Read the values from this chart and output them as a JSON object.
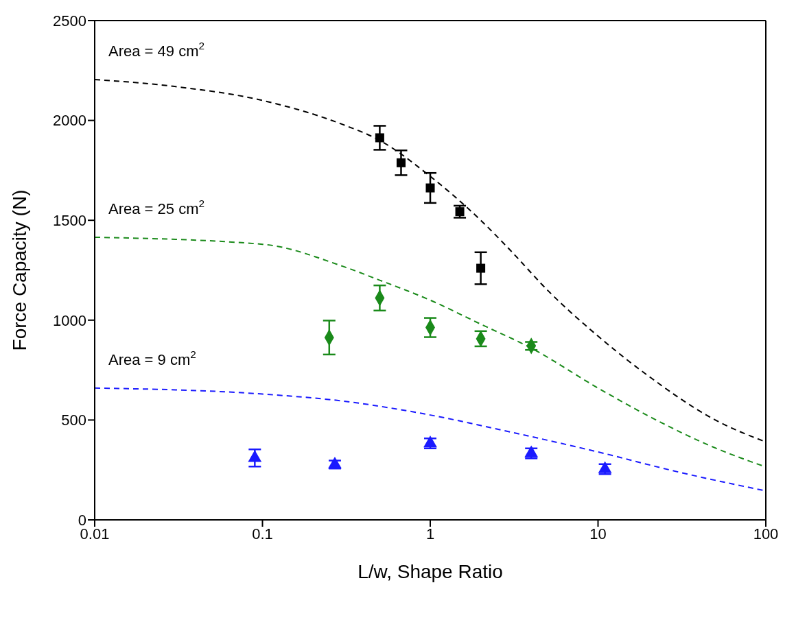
{
  "chart_data": {
    "type": "scatter",
    "xlabel": "L/w, Shape Ratio",
    "ylabel": "Force Capacity (N)",
    "log": "x",
    "xlim": [
      0.01,
      100
    ],
    "xticks": [
      0.01,
      0.1,
      1,
      10,
      100
    ],
    "ylim": [
      0,
      2500
    ],
    "yticks": [
      0,
      500,
      1000,
      1500,
      2000,
      2500
    ],
    "grid": false,
    "series": [
      {
        "type": "line",
        "color": "#000000",
        "line_style": "dashed",
        "marker": "none",
        "x": [
          0.01,
          0.03,
          0.1,
          0.3,
          0.5,
          1,
          2,
          3,
          5,
          10,
          20,
          50,
          100
        ],
        "values": [
          2205,
          2170,
          2100,
          1980,
          1900,
          1720,
          1500,
          1350,
          1150,
          920,
          720,
          500,
          390
        ]
      },
      {
        "type": "line",
        "color": "#1a8a1a",
        "line_style": "dashed",
        "marker": "none",
        "x": [
          0.01,
          0.1,
          0.3,
          0.5,
          1,
          2,
          4,
          10,
          20,
          50,
          100
        ],
        "values": [
          1415,
          1380,
          1270,
          1200,
          1100,
          980,
          860,
          660,
          520,
          360,
          265
        ]
      },
      {
        "type": "line",
        "color": "#1a1aff",
        "line_style": "dashed",
        "marker": "none",
        "x": [
          0.01,
          0.1,
          0.3,
          1,
          3,
          10,
          30,
          100
        ],
        "values": [
          660,
          630,
          595,
          525,
          440,
          340,
          240,
          145
        ]
      },
      {
        "color": "#000000",
        "marker": "square",
        "x": [
          0.5,
          0.67,
          1,
          1.5,
          2
        ],
        "values": [
          1913,
          1788,
          1662,
          1543,
          1260
        ],
        "errors": [
          60,
          62,
          75,
          30,
          80
        ]
      },
      {
        "color": "#1a8a1a",
        "marker": "diamond",
        "x": [
          0.25,
          0.5,
          1,
          2,
          4
        ],
        "values": [
          913,
          1111,
          963,
          907,
          871
        ],
        "errors": [
          85,
          63,
          48,
          38,
          20
        ]
      },
      {
        "color": "#1a1aff",
        "marker": "triangle",
        "x": [
          0.09,
          0.27,
          1,
          4,
          11
        ],
        "values": [
          310,
          277,
          383,
          333,
          254
        ],
        "errors": [
          43,
          20,
          25,
          25,
          25
        ]
      }
    ],
    "annotations": [
      "Area = 49 cm$^{2}$",
      "Area = 25 cm$^{2}$",
      "Area = 9 cm$^{2}$"
    ]
  }
}
